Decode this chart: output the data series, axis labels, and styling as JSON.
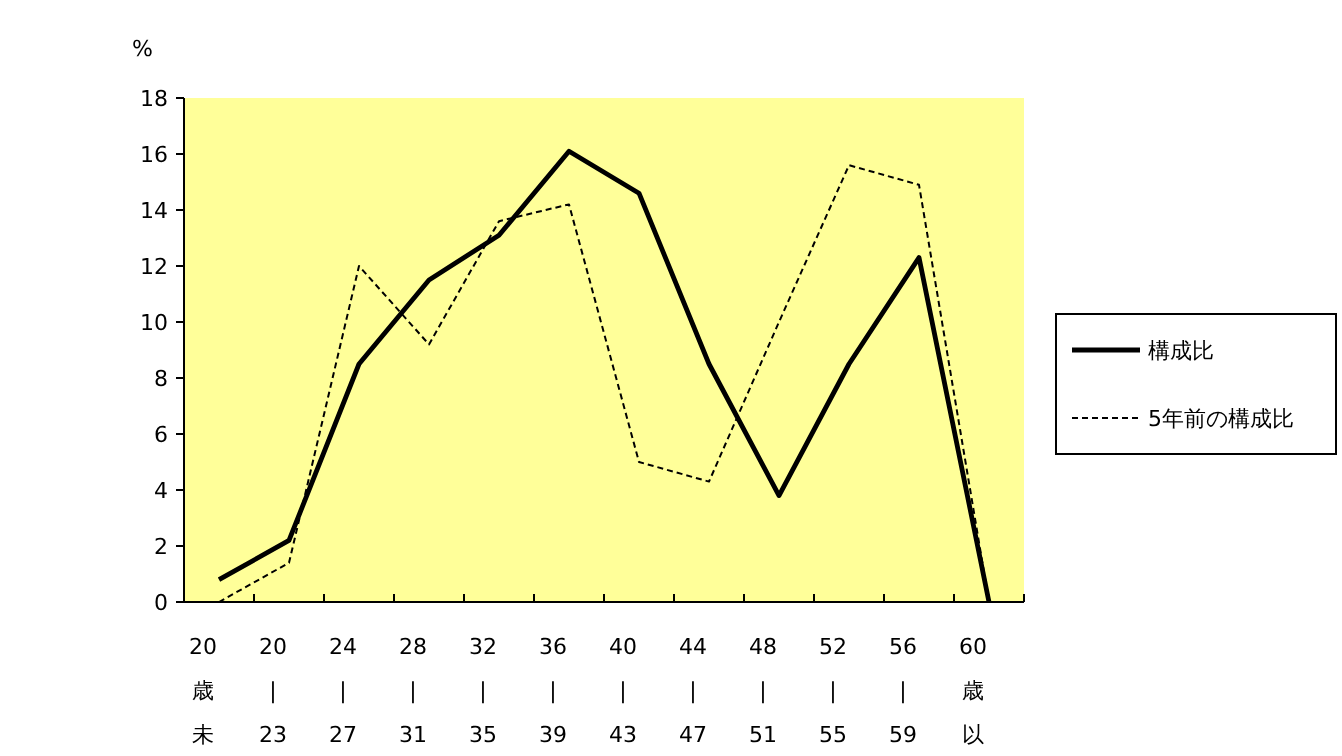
{
  "chart_data": {
    "type": "line",
    "ylabel": "%",
    "categories": [
      "20歳未",
      "20\n|\n23",
      "24\n|\n27",
      "28\n|\n31",
      "32\n|\n35",
      "36\n|\n39",
      "40\n|\n43",
      "44\n|\n47",
      "48\n|\n51",
      "52\n|\n55",
      "56\n|\n59",
      "60歳以"
    ],
    "series": [
      {
        "name": "構成比",
        "color": "#000000",
        "line_style": "solid",
        "values": [
          0.8,
          2.2,
          8.5,
          11.5,
          13.1,
          16.1,
          14.6,
          8.5,
          3.8,
          8.5,
          12.3,
          0
        ]
      },
      {
        "name": "5年前の構成比",
        "color": "#000000",
        "line_style": "dashed",
        "values": [
          0,
          1.4,
          12.0,
          9.2,
          13.6,
          14.2,
          5.0,
          4.3,
          10.0,
          15.6,
          14.9,
          0
        ]
      }
    ],
    "ylim": [
      0,
      18
    ],
    "yticks": [
      0,
      2,
      4,
      6,
      8,
      10,
      12,
      14,
      16,
      18
    ],
    "grid": false,
    "legend": "right",
    "marker": "none"
  }
}
